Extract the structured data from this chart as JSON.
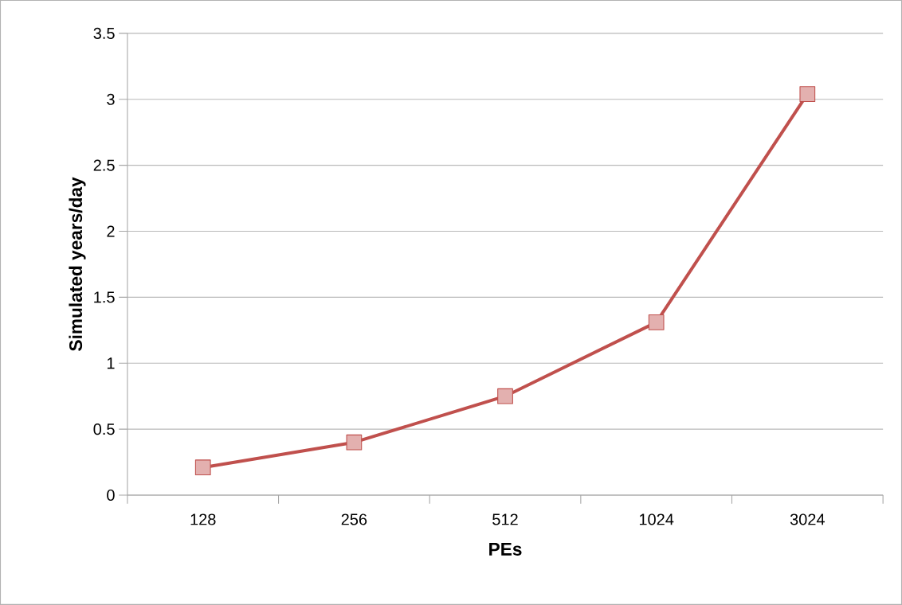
{
  "chart_data": {
    "type": "line",
    "xlabel": "PEs",
    "ylabel": "Simulated years/day",
    "categories": [
      "128",
      "256",
      "512",
      "1024",
      "3024"
    ],
    "series": [
      {
        "color": "#c0504d",
        "values": [
          0.21,
          0.4,
          0.75,
          1.31,
          3.04
        ]
      }
    ],
    "ylim": [
      0,
      3.5
    ],
    "yticks": [
      0,
      0.5,
      1,
      1.5,
      2,
      2.5,
      3,
      3.5
    ],
    "grid": "y",
    "marker": "square",
    "line_style": "solid"
  }
}
